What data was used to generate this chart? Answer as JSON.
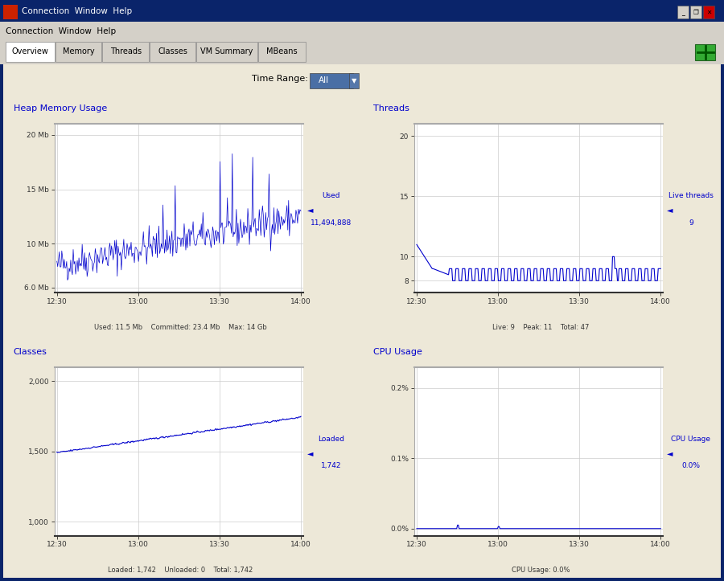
{
  "bg_color": "#f0ebe0",
  "panel_bg": "#ede8d8",
  "border_color": "#88cc88",
  "title_color": "#0000cc",
  "line_color": "#0000cc",
  "axis_label_color": "#333333",
  "grid_color": "#cccccc",
  "window_bg": "#d4d0c8",
  "titlebar_text": "Connection  Window  Help",
  "tabs": [
    "Overview",
    "Memory",
    "Threads",
    "Classes",
    "VM Summary",
    "MBeans"
  ],
  "time_range_label": "Time Range:",
  "time_range_value": "All",
  "charts": {
    "heap": {
      "title": "Heap Memory Usage",
      "yticks": [
        6.0,
        10.0,
        15.0,
        20.0
      ],
      "ytick_labels": [
        "6.0 Mb",
        "10 Mb",
        "15 Mb",
        "20 Mb"
      ],
      "ylim": [
        5.5,
        21.0
      ],
      "xtick_labels": [
        "12:30",
        "13:00",
        "13:30",
        "14:00"
      ],
      "legend_line1": "Used",
      "legend_line2": "11,494,888",
      "footer": "Used: 11.5 Mb    Committed: 23.4 Mb    Max: 14 Gb"
    },
    "threads": {
      "title": "Threads",
      "yticks": [
        8,
        10,
        15,
        20
      ],
      "ytick_labels": [
        "8",
        "10",
        "15",
        "20"
      ],
      "ylim": [
        7,
        21
      ],
      "xtick_labels": [
        "12:30",
        "13:00",
        "13:30",
        "14:00"
      ],
      "legend_line1": "Live threads",
      "legend_line2": "9",
      "footer": "Live: 9    Peak: 11    Total: 47"
    },
    "classes": {
      "title": "Classes",
      "yticks": [
        1000,
        1500,
        2000
      ],
      "ytick_labels": [
        "1,000",
        "1,500",
        "2,000"
      ],
      "ylim": [
        900,
        2100
      ],
      "xtick_labels": [
        "12:30",
        "13:00",
        "13:30",
        "14:00"
      ],
      "legend_line1": "Loaded",
      "legend_line2": "1,742",
      "footer": "Loaded: 1,742    Unloaded: 0    Total: 1,742"
    },
    "cpu": {
      "title": "CPU Usage",
      "yticks": [
        0.0,
        0.1,
        0.2
      ],
      "ytick_labels": [
        "0.0%",
        "0.1%",
        "0.2%"
      ],
      "ylim": [
        -0.01,
        0.23
      ],
      "xtick_labels": [
        "12:30",
        "13:00",
        "13:30",
        "14:00"
      ],
      "legend_line1": "CPU Usage",
      "legend_line2": "0.0%",
      "footer": "CPU Usage: 0.0%"
    }
  }
}
